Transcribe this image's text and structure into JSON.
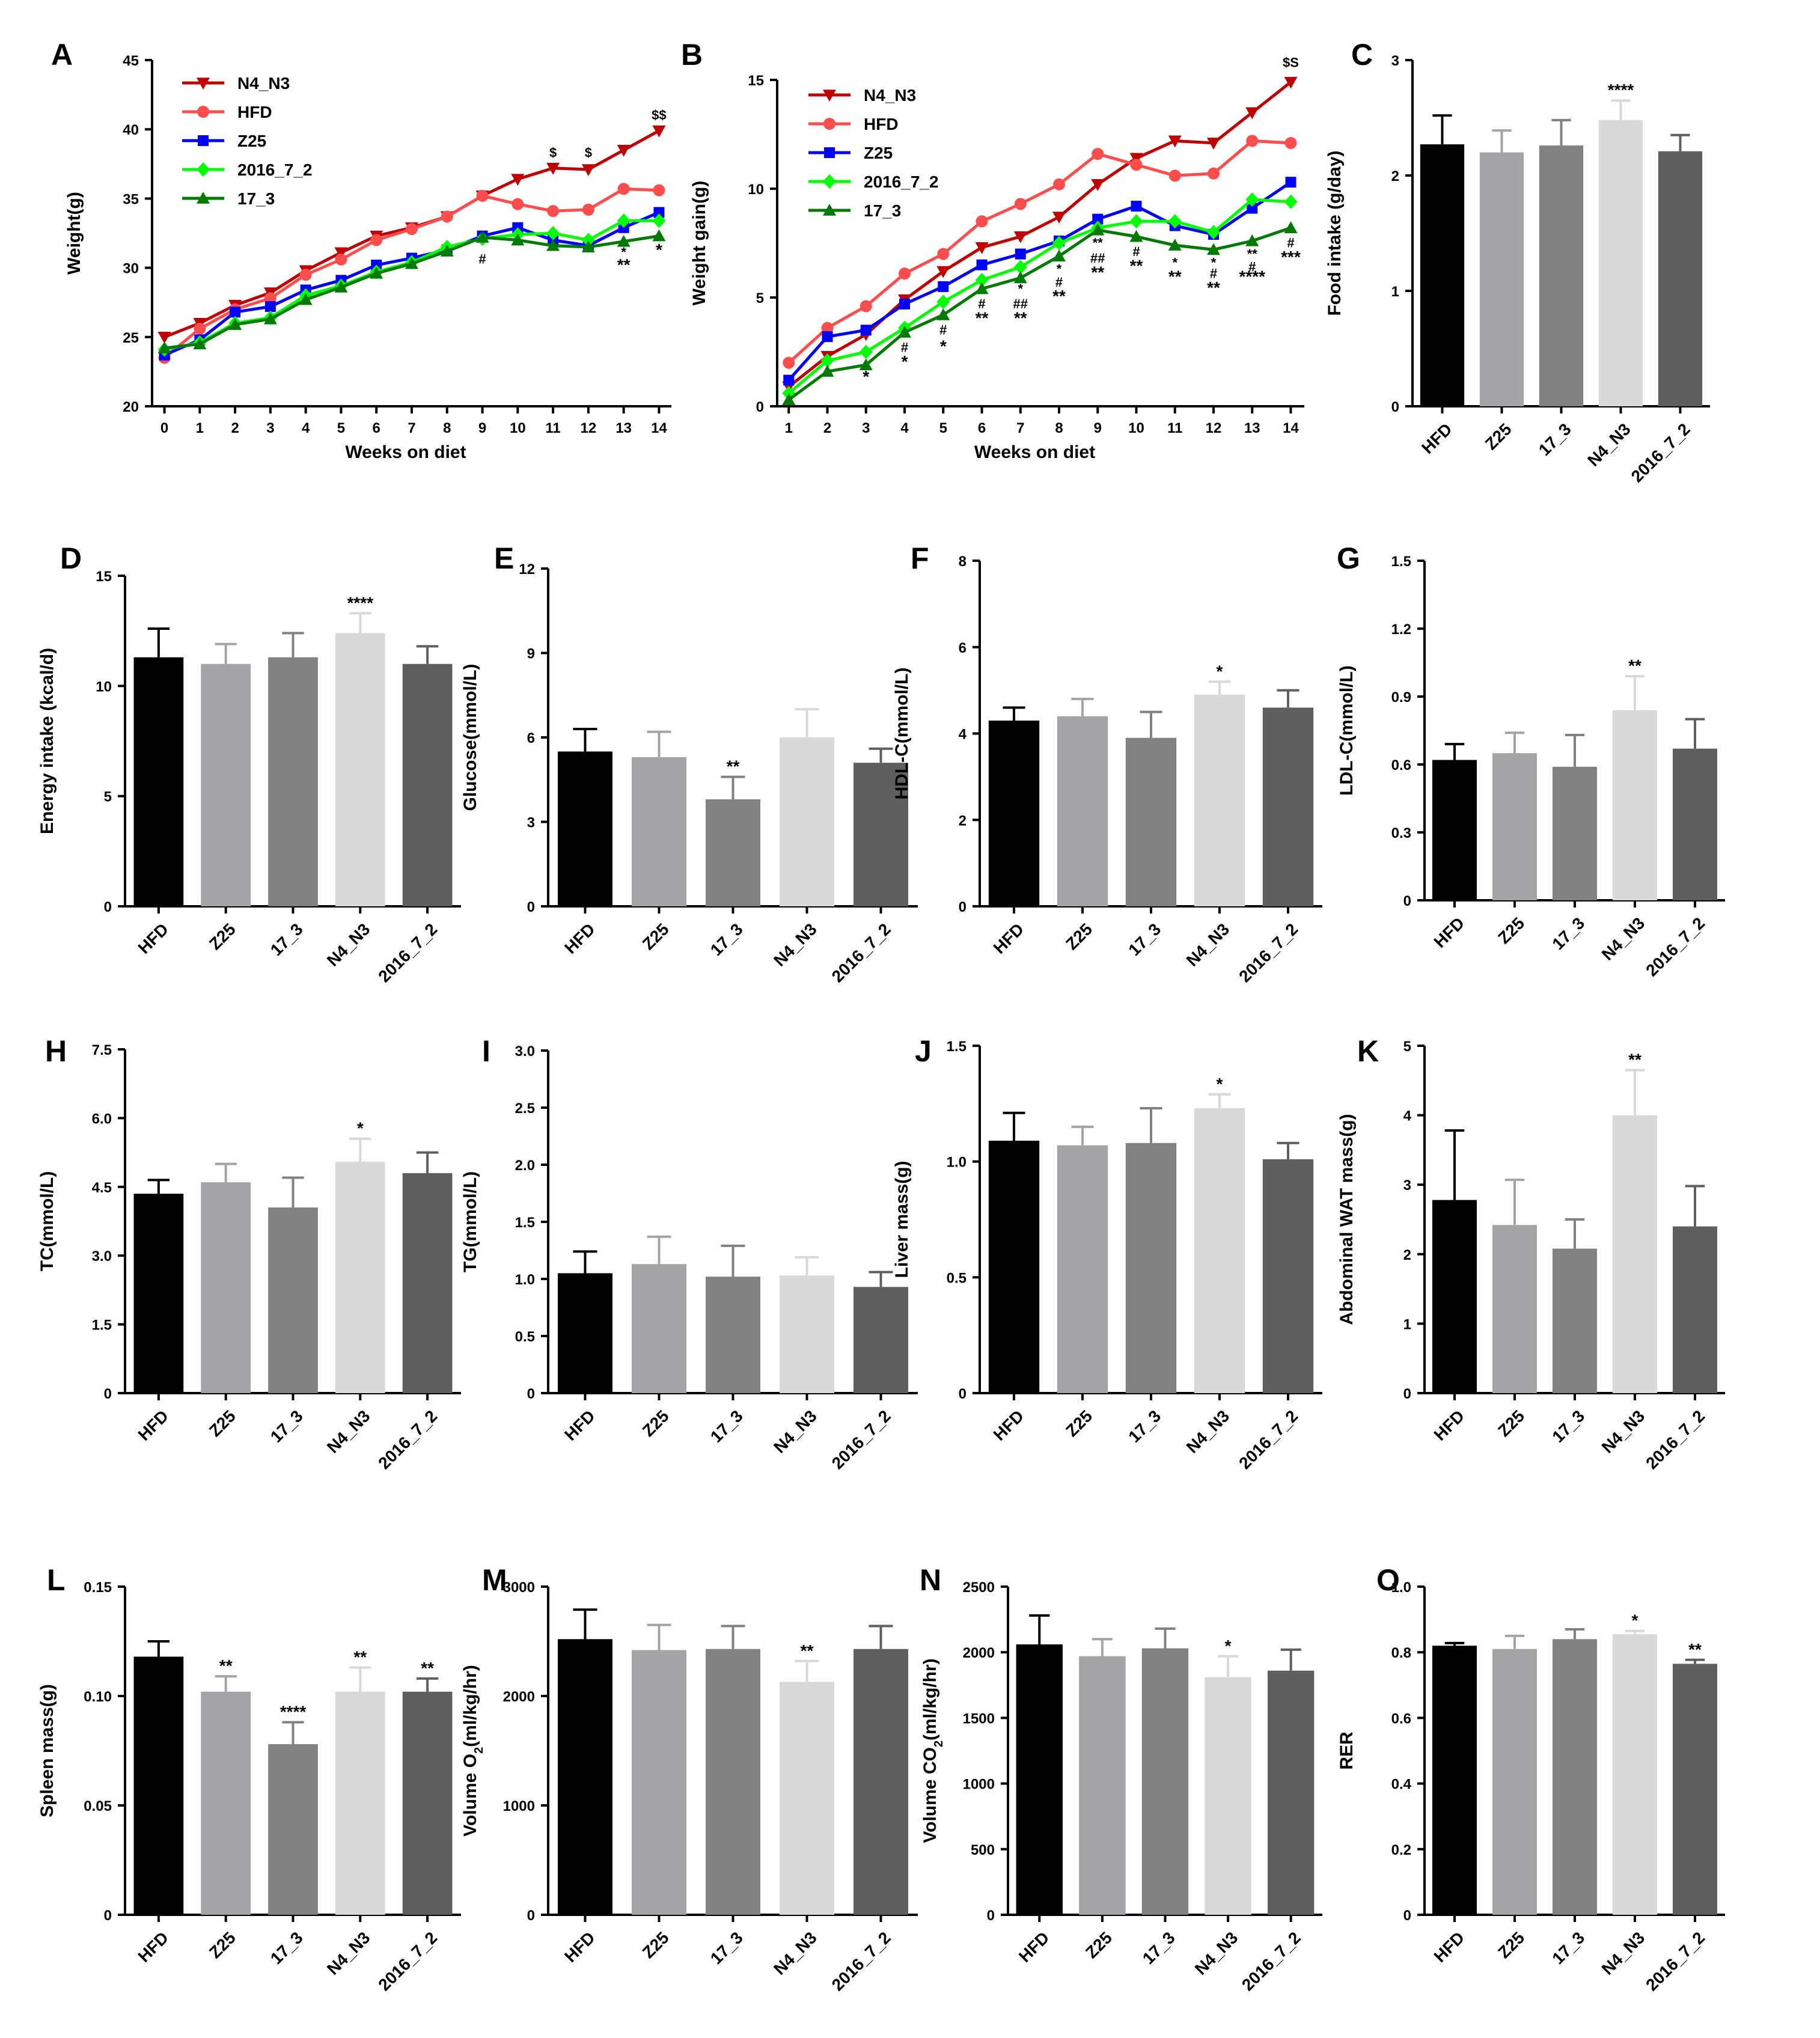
{
  "figure": {
    "background": "#ffffff"
  },
  "chart_data": [
    {
      "id": "A",
      "panel_label": "A",
      "type": "line",
      "xlabel": "Weeks on diet",
      "ylabel": "Weight(g)",
      "x": [
        0,
        1,
        2,
        3,
        4,
        5,
        6,
        7,
        8,
        9,
        10,
        11,
        12,
        13,
        14
      ],
      "xticks": [
        "0",
        "1",
        "2",
        "3",
        "4",
        "5",
        "6",
        "7",
        "8",
        "9",
        "10",
        "11",
        "12",
        "13",
        "14"
      ],
      "ylim": [
        20,
        45
      ],
      "yticks": [
        20,
        25,
        30,
        35,
        40,
        45
      ],
      "series": [
        {
          "name": "N4_N3",
          "color": "#c00000",
          "marker": "tri-down",
          "values": [
            25.0,
            26.0,
            27.3,
            28.2,
            29.8,
            31.1,
            32.3,
            32.9,
            33.7,
            35.2,
            36.4,
            37.2,
            37.1,
            38.5,
            39.9
          ]
        },
        {
          "name": "HFD",
          "color": "#ff4d4d",
          "marker": "circle",
          "values": [
            23.5,
            25.6,
            27.0,
            27.8,
            29.5,
            30.6,
            32.0,
            32.8,
            33.7,
            35.2,
            34.6,
            34.1,
            34.2,
            35.7,
            35.6
          ]
        },
        {
          "name": "Z25",
          "color": "#0000ff",
          "marker": "square",
          "values": [
            23.7,
            24.8,
            26.8,
            27.2,
            28.4,
            29.1,
            30.2,
            30.7,
            31.3,
            32.3,
            32.9,
            32.0,
            31.6,
            32.9,
            34.0
          ]
        },
        {
          "name": "2016_7_2",
          "color": "#00ff00",
          "marker": "diamond",
          "values": [
            24.1,
            24.6,
            26.0,
            26.4,
            28.0,
            28.7,
            29.7,
            30.4,
            31.5,
            32.1,
            32.4,
            32.5,
            32.0,
            33.4,
            33.4
          ]
        },
        {
          "name": "17_3",
          "color": "#007a00",
          "marker": "tri-up",
          "values": [
            24.2,
            24.5,
            25.9,
            26.3,
            27.7,
            28.6,
            29.6,
            30.3,
            31.2,
            32.2,
            32.0,
            31.6,
            31.5,
            31.9,
            32.3
          ]
        }
      ],
      "annotations": [
        {
          "x": 9,
          "y": 30.3,
          "text": "#",
          "size": "sm"
        },
        {
          "x": 11,
          "y": 38.0,
          "text": "$",
          "size": "sm"
        },
        {
          "x": 12,
          "y": 38.0,
          "text": "$",
          "size": "sm"
        },
        {
          "x": 13,
          "y": 30.8,
          "text": "*",
          "size": "sm"
        },
        {
          "x": 13,
          "y": 29.8,
          "text": "**",
          "size": "lg"
        },
        {
          "x": 14,
          "y": 40.7,
          "text": "$$",
          "size": "sm"
        },
        {
          "x": 14,
          "y": 30.9,
          "text": "*",
          "size": "lg"
        }
      ]
    },
    {
      "id": "B",
      "panel_label": "B",
      "type": "line",
      "xlabel": "Weeks on diet",
      "ylabel": "Weight gain(g)",
      "x": [
        1,
        2,
        3,
        4,
        5,
        6,
        7,
        8,
        9,
        10,
        11,
        12,
        13,
        14
      ],
      "xticks": [
        "1",
        "2",
        "3",
        "4",
        "5",
        "6",
        "7",
        "8",
        "9",
        "10",
        "11",
        "12",
        "13",
        "14"
      ],
      "ylim": [
        0,
        15
      ],
      "yticks": [
        0,
        5,
        10,
        15
      ],
      "series": [
        {
          "name": "N4_N3",
          "color": "#c00000",
          "marker": "tri-down",
          "values": [
            0.9,
            2.3,
            3.3,
            4.9,
            6.2,
            7.3,
            7.8,
            8.7,
            10.2,
            11.4,
            12.2,
            12.1,
            13.5,
            14.9
          ]
        },
        {
          "name": "HFD",
          "color": "#ff4d4d",
          "marker": "circle",
          "values": [
            2.0,
            3.6,
            4.6,
            6.1,
            7.0,
            8.5,
            9.3,
            10.2,
            11.6,
            11.1,
            10.6,
            10.7,
            12.2,
            12.1
          ]
        },
        {
          "name": "Z25",
          "color": "#0000ff",
          "marker": "square",
          "values": [
            1.2,
            3.2,
            3.5,
            4.7,
            5.5,
            6.5,
            7.0,
            7.6,
            8.6,
            9.2,
            8.3,
            7.9,
            9.1,
            10.3
          ]
        },
        {
          "name": "2016_7_2",
          "color": "#00ff00",
          "marker": "diamond",
          "values": [
            0.6,
            2.1,
            2.5,
            3.6,
            4.8,
            5.8,
            6.4,
            7.5,
            8.2,
            8.5,
            8.5,
            8.0,
            9.5,
            9.4
          ]
        },
        {
          "name": "17_3",
          "color": "#007a00",
          "marker": "tri-up",
          "values": [
            0.3,
            1.6,
            1.9,
            3.4,
            4.2,
            5.4,
            5.9,
            6.9,
            8.1,
            7.8,
            7.4,
            7.2,
            7.6,
            8.2
          ]
        }
      ],
      "annotations": [
        {
          "x": 3,
          "y": 1.1,
          "text": "*",
          "size": "lg"
        },
        {
          "x": 4,
          "y": 2.5,
          "text": "#",
          "size": "sm"
        },
        {
          "x": 4,
          "y": 1.8,
          "text": "*",
          "size": "lg"
        },
        {
          "x": 5,
          "y": 3.3,
          "text": "#",
          "size": "sm"
        },
        {
          "x": 5,
          "y": 2.5,
          "text": "*",
          "size": "lg"
        },
        {
          "x": 6,
          "y": 4.5,
          "text": "#",
          "size": "sm"
        },
        {
          "x": 6,
          "y": 3.8,
          "text": "**",
          "size": "lg"
        },
        {
          "x": 7,
          "y": 5.2,
          "text": "*",
          "size": "sm"
        },
        {
          "x": 7,
          "y": 4.5,
          "text": "##",
          "size": "sm"
        },
        {
          "x": 7,
          "y": 3.8,
          "text": "**",
          "size": "lg"
        },
        {
          "x": 8,
          "y": 6.1,
          "text": "*",
          "size": "sm"
        },
        {
          "x": 8,
          "y": 5.5,
          "text": "#",
          "size": "sm"
        },
        {
          "x": 8,
          "y": 4.8,
          "text": "**",
          "size": "lg"
        },
        {
          "x": 9,
          "y": 7.3,
          "text": "**",
          "size": "sm"
        },
        {
          "x": 9,
          "y": 6.6,
          "text": "##",
          "size": "sm"
        },
        {
          "x": 9,
          "y": 5.9,
          "text": "**",
          "size": "lg"
        },
        {
          "x": 10,
          "y": 6.9,
          "text": "#",
          "size": "sm"
        },
        {
          "x": 10,
          "y": 6.2,
          "text": "**",
          "size": "lg"
        },
        {
          "x": 11,
          "y": 6.4,
          "text": "*",
          "size": "sm"
        },
        {
          "x": 11,
          "y": 5.7,
          "text": "**",
          "size": "lg"
        },
        {
          "x": 12,
          "y": 6.4,
          "text": "*",
          "size": "sm"
        },
        {
          "x": 12,
          "y": 5.9,
          "text": "#",
          "size": "sm"
        },
        {
          "x": 12,
          "y": 5.2,
          "text": "**",
          "size": "lg"
        },
        {
          "x": 13,
          "y": 6.8,
          "text": "**",
          "size": "sm"
        },
        {
          "x": 13,
          "y": 6.2,
          "text": "#",
          "size": "sm"
        },
        {
          "x": 13,
          "y": 5.7,
          "text": "****",
          "size": "lg"
        },
        {
          "x": 14,
          "y": 7.3,
          "text": "#",
          "size": "sm"
        },
        {
          "x": 14,
          "y": 6.6,
          "text": "***",
          "size": "lg"
        },
        {
          "x": 14,
          "y": 15.6,
          "text": "$S",
          "size": "sm"
        }
      ]
    },
    {
      "id": "C",
      "panel_label": "C",
      "type": "bar",
      "ylabel": "Food intake (g/day)",
      "ylim": [
        0,
        3
      ],
      "yticks": [
        "0",
        "1",
        "2",
        "3"
      ],
      "categories": [
        "HFD",
        "Z25",
        "17_3",
        "N4_N3",
        "2016_7_2"
      ],
      "values": [
        2.27,
        2.2,
        2.26,
        2.48,
        2.21
      ],
      "errors": [
        0.25,
        0.19,
        0.22,
        0.17,
        0.14
      ],
      "sig": [
        "",
        "",
        "",
        "****",
        ""
      ]
    },
    {
      "id": "D",
      "panel_label": "D",
      "type": "bar",
      "ylabel": "Energy intake (kcal/d)",
      "ylim": [
        0,
        15
      ],
      "yticks": [
        "0",
        "5",
        "10",
        "15"
      ],
      "categories": [
        "HFD",
        "Z25",
        "17_3",
        "N4_N3",
        "2016_7_2"
      ],
      "values": [
        11.3,
        11.0,
        11.3,
        12.4,
        11.0
      ],
      "errors": [
        1.3,
        0.9,
        1.1,
        0.9,
        0.8
      ],
      "sig": [
        "",
        "",
        "",
        "****",
        ""
      ]
    },
    {
      "id": "E",
      "panel_label": "E",
      "type": "bar",
      "ylabel": "Glucose(mmol/L)",
      "ylim": [
        0,
        12
      ],
      "yticks": [
        "0",
        "3",
        "6",
        "9",
        "12"
      ],
      "categories": [
        "HFD",
        "Z25",
        "17_3",
        "N4_N3",
        "2016_7_2"
      ],
      "values": [
        5.5,
        5.3,
        3.8,
        6.0,
        5.1
      ],
      "errors": [
        0.8,
        0.9,
        0.8,
        1.0,
        0.5
      ],
      "sig": [
        "",
        "",
        "**",
        "",
        ""
      ]
    },
    {
      "id": "F",
      "panel_label": "F",
      "type": "bar",
      "ylabel": "HDL-C(mmol/L)",
      "ylim": [
        0,
        8
      ],
      "yticks": [
        "0",
        "2",
        "4",
        "6",
        "8"
      ],
      "categories": [
        "HFD",
        "Z25",
        "17_3",
        "N4_N3",
        "2016_7_2"
      ],
      "values": [
        4.3,
        4.4,
        3.9,
        4.9,
        4.6
      ],
      "errors": [
        0.3,
        0.4,
        0.6,
        0.3,
        0.4
      ],
      "sig": [
        "",
        "",
        "",
        "*",
        ""
      ]
    },
    {
      "id": "G",
      "panel_label": "G",
      "type": "bar",
      "ylabel": "LDL-C(mmol/L)",
      "ylim": [
        0,
        1.5
      ],
      "yticks": [
        "0",
        "0.3",
        "0.6",
        "0.9",
        "1.2",
        "1.5"
      ],
      "categories": [
        "HFD",
        "Z25",
        "17_3",
        "N4_N3",
        "2016_7_2"
      ],
      "values": [
        0.62,
        0.65,
        0.59,
        0.84,
        0.67
      ],
      "errors": [
        0.07,
        0.09,
        0.14,
        0.15,
        0.13
      ],
      "sig": [
        "",
        "",
        "",
        "**",
        ""
      ]
    },
    {
      "id": "H",
      "panel_label": "H",
      "type": "bar",
      "ylabel": "TC(mmol/L)",
      "ylim": [
        0,
        7.5
      ],
      "yticks": [
        "0",
        "1.5",
        "3.0",
        "4.5",
        "6.0",
        "7.5"
      ],
      "categories": [
        "HFD",
        "Z25",
        "17_3",
        "N4_N3",
        "2016_7_2"
      ],
      "values": [
        4.35,
        4.6,
        4.05,
        5.05,
        4.8
      ],
      "errors": [
        0.3,
        0.4,
        0.65,
        0.5,
        0.45
      ],
      "sig": [
        "",
        "",
        "",
        "*",
        ""
      ]
    },
    {
      "id": "I",
      "panel_label": "I",
      "type": "bar",
      "ylabel": "TG(mmol/L)",
      "ylim": [
        0,
        3.0
      ],
      "yticks": [
        "0",
        "0.5",
        "1.0",
        "1.5",
        "2.0",
        "2.5",
        "3.0"
      ],
      "categories": [
        "HFD",
        "Z25",
        "17_3",
        "N4_N3",
        "2016_7_2"
      ],
      "values": [
        1.05,
        1.13,
        1.02,
        1.03,
        0.93
      ],
      "errors": [
        0.19,
        0.24,
        0.27,
        0.16,
        0.13
      ],
      "sig": [
        "",
        "",
        "",
        "",
        ""
      ]
    },
    {
      "id": "J",
      "panel_label": "J",
      "type": "bar",
      "ylabel": "Liver mass(g)",
      "ylim": [
        0,
        1.5
      ],
      "yticks": [
        "0",
        "0.5",
        "1.0",
        "1.5"
      ],
      "categories": [
        "HFD",
        "Z25",
        "17_3",
        "N4_N3",
        "2016_7_2"
      ],
      "values": [
        1.09,
        1.07,
        1.08,
        1.23,
        1.01
      ],
      "errors": [
        0.12,
        0.08,
        0.15,
        0.06,
        0.07
      ],
      "sig": [
        "",
        "",
        "",
        "*",
        ""
      ]
    },
    {
      "id": "K",
      "panel_label": "K",
      "type": "bar",
      "ylabel": "Abdominal WAT mass(g)",
      "ylim": [
        0,
        5
      ],
      "yticks": [
        "0",
        "1",
        "2",
        "3",
        "4",
        "5"
      ],
      "categories": [
        "HFD",
        "Z25",
        "17_3",
        "N4_N3",
        "2016_7_2"
      ],
      "values": [
        2.78,
        2.42,
        2.08,
        4.0,
        2.4
      ],
      "errors": [
        1.0,
        0.65,
        0.42,
        0.65,
        0.58
      ],
      "sig": [
        "",
        "",
        "",
        "**",
        ""
      ]
    },
    {
      "id": "L",
      "panel_label": "L",
      "type": "bar",
      "ylabel": "Spleen mass(g)",
      "ylim": [
        0,
        0.15
      ],
      "yticks": [
        "0",
        "0.05",
        "0.10",
        "0.15"
      ],
      "categories": [
        "HFD",
        "Z25",
        "17_3",
        "N4_N3",
        "2016_7_2"
      ],
      "values": [
        0.118,
        0.102,
        0.078,
        0.102,
        0.102
      ],
      "errors": [
        0.007,
        0.007,
        0.01,
        0.011,
        0.006
      ],
      "sig": [
        "",
        "**",
        "****",
        "**",
        "**"
      ]
    },
    {
      "id": "M",
      "panel_label": "M",
      "type": "bar",
      "ylabel": "Volume O",
      "ylabel_sub": "2",
      "ylabel_rest": "(ml/kg/hr)",
      "ylim": [
        0,
        3000
      ],
      "yticks": [
        "0",
        "1000",
        "2000",
        "3000"
      ],
      "categories": [
        "HFD",
        "Z25",
        "17_3",
        "N4_N3",
        "2016_7_2"
      ],
      "values": [
        2520,
        2420,
        2430,
        2130,
        2430
      ],
      "errors": [
        270,
        230,
        210,
        190,
        210
      ],
      "sig": [
        "",
        "",
        "",
        "**",
        ""
      ]
    },
    {
      "id": "N",
      "panel_label": "N",
      "type": "bar",
      "ylabel": "Volume CO",
      "ylabel_sub": "2",
      "ylabel_rest": "(ml/kg/hr)",
      "ylim": [
        0,
        2500
      ],
      "yticks": [
        "0",
        "500",
        "1000",
        "1500",
        "2000",
        "2500"
      ],
      "categories": [
        "HFD",
        "Z25",
        "17_3",
        "N4_N3",
        "2016_7_2"
      ],
      "values": [
        2060,
        1970,
        2030,
        1810,
        1860
      ],
      "errors": [
        220,
        130,
        150,
        160,
        160
      ],
      "sig": [
        "",
        "",
        "",
        "*",
        ""
      ]
    },
    {
      "id": "O",
      "panel_label": "O",
      "type": "bar",
      "ylabel": "RER",
      "ylim": [
        0,
        1.0
      ],
      "yticks": [
        "0",
        "0.2",
        "0.4",
        "0.6",
        "0.8",
        "1.0"
      ],
      "categories": [
        "HFD",
        "Z25",
        "17_3",
        "N4_N3",
        "2016_7_2"
      ],
      "values": [
        0.82,
        0.81,
        0.84,
        0.855,
        0.765
      ],
      "errors": [
        0.008,
        0.04,
        0.03,
        0.01,
        0.012
      ],
      "sig": [
        "",
        "",
        "",
        "*",
        "**"
      ]
    }
  ],
  "bar_colors": [
    "#000000",
    "#a4a4a6",
    "#818181",
    "#d9d9d9",
    "#5f5f5f"
  ]
}
